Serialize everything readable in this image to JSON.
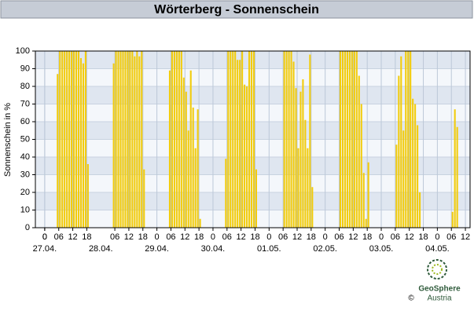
{
  "chart_data": {
    "type": "bar",
    "title": "Wörterberg - Sonnenschein",
    "y_label": "Sonnenschein in %",
    "color": "#f2cc0c",
    "grid": true,
    "x": [
      5,
      6,
      7,
      8,
      9,
      10,
      11,
      12,
      13,
      14,
      15,
      16,
      17,
      18,
      29,
      30,
      31,
      32,
      33,
      34,
      35,
      36,
      37,
      38,
      39,
      40,
      41,
      42,
      53,
      54,
      55,
      56,
      57,
      58,
      59,
      60,
      61,
      62,
      63,
      64,
      65,
      66,
      77,
      78,
      79,
      80,
      81,
      82,
      83,
      84,
      85,
      86,
      87,
      88,
      89,
      90,
      102,
      103,
      104,
      105,
      106,
      107,
      108,
      109,
      110,
      111,
      112,
      113,
      114,
      126,
      127,
      128,
      129,
      130,
      131,
      132,
      133,
      134,
      135,
      136,
      137,
      138,
      150,
      151,
      152,
      153,
      154,
      155,
      156,
      157,
      158,
      159,
      160,
      174,
      175,
      176
    ],
    "values": [
      87,
      100,
      100,
      100,
      100,
      100,
      100,
      100,
      100,
      100,
      96,
      93,
      100,
      36,
      93,
      100,
      100,
      100,
      100,
      100,
      100,
      100,
      100,
      97,
      100,
      97,
      100,
      33,
      89,
      100,
      100,
      100,
      100,
      100,
      85,
      77,
      55,
      89,
      68,
      45,
      67,
      5,
      39,
      100,
      100,
      100,
      100,
      95,
      95,
      100,
      81,
      80,
      100,
      100,
      100,
      33,
      100,
      100,
      100,
      100,
      94,
      79,
      45,
      77,
      84,
      61,
      45,
      98,
      23,
      100,
      100,
      100,
      100,
      100,
      100,
      100,
      100,
      86,
      70,
      31,
      5,
      37,
      47,
      86,
      97,
      55,
      100,
      100,
      100,
      73,
      70,
      58,
      20,
      9,
      67,
      57
    ],
    "xlim": [
      -4,
      182
    ],
    "xticks": [
      0,
      {
        "value": 6,
        "label": "06"
      },
      12,
      18,
      0,
      {
        "value": 30,
        "label": "06"
      },
      {
        "value": 36,
        "label": "12"
      },
      {
        "value": 42,
        "label": "18"
      },
      {
        "value": 48,
        "label": "0"
      },
      {
        "value": 54,
        "label": "06"
      },
      {
        "value": 60,
        "label": "12"
      },
      {
        "value": 66,
        "label": "18"
      },
      {
        "value": 72,
        "label": "0"
      },
      {
        "value": 78,
        "label": "06"
      },
      {
        "value": 84,
        "label": "12"
      },
      {
        "value": 90,
        "label": "18"
      },
      {
        "value": 96,
        "label": "0"
      },
      {
        "value": 102,
        "label": "06"
      },
      {
        "value": 108,
        "label": "12"
      },
      {
        "value": 114,
        "label": "18"
      },
      {
        "value": 120,
        "label": "0"
      },
      {
        "value": 126,
        "label": "06"
      },
      {
        "value": 132,
        "label": "12"
      },
      {
        "value": 138,
        "label": "18"
      },
      {
        "value": 144,
        "label": "0"
      },
      {
        "value": 150,
        "label": "06"
      },
      {
        "value": 156,
        "label": "12"
      },
      {
        "value": 162,
        "label": "18"
      },
      {
        "value": 168,
        "label": "0"
      },
      {
        "value": 174,
        "label": "06"
      },
      {
        "value": 180,
        "label": "12"
      }
    ],
    "x_date_labels": [
      {
        "value": 0,
        "label": "27.04."
      },
      {
        "value": 24,
        "label": "28.04."
      },
      {
        "value": 48,
        "label": "29.04."
      },
      {
        "value": 72,
        "label": "30.04."
      },
      {
        "value": 96,
        "label": "01.05."
      },
      {
        "value": 120,
        "label": "02.05."
      },
      {
        "value": 144,
        "label": "03.05."
      },
      {
        "value": 168,
        "label": "04.05."
      }
    ],
    "ylim": [
      0,
      100
    ],
    "yticks": [
      0,
      10,
      20,
      30,
      40,
      50,
      60,
      70,
      80,
      90,
      100
    ]
  },
  "logo": {
    "name_line1": "GeoSphere",
    "name_line2": "Austria",
    "copyright": "©"
  }
}
